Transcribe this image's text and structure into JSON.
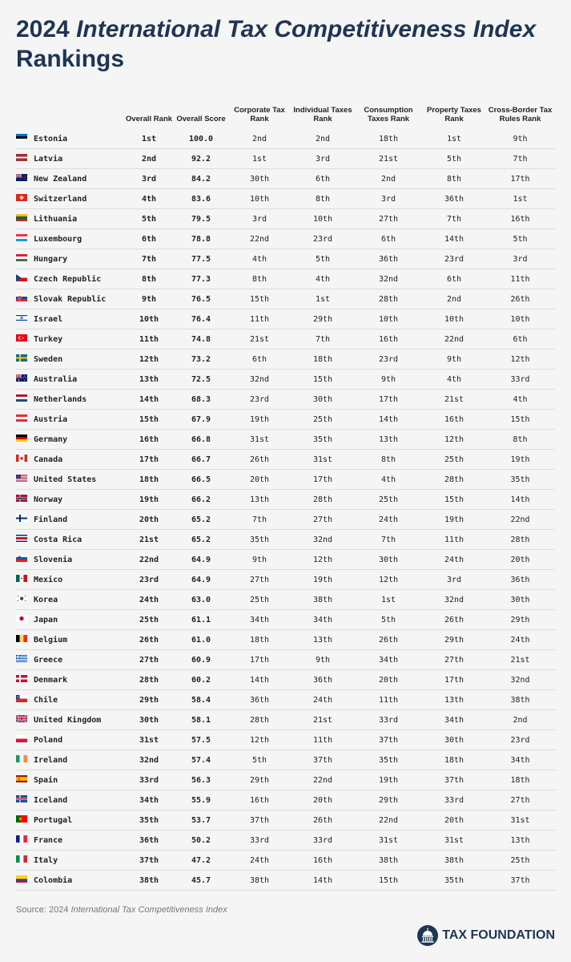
{
  "title": {
    "year": "2024",
    "name": "International Tax Competitiveness Index",
    "suffix": "Rankings"
  },
  "chart_data": {
    "type": "table",
    "columns": [
      "",
      "Overall Rank",
      "Overall Score",
      "Corporate Tax Rank",
      "Individual Taxes Rank",
      "Consumption Taxes Rank",
      "Property Taxes Rank",
      "Cross-Border Tax Rules Rank"
    ],
    "rows": [
      {
        "country": "Estonia",
        "flag": "estonia-flag",
        "values": [
          "1st",
          "100.0",
          "2nd",
          "2nd",
          "18th",
          "1st",
          "9th"
        ]
      },
      {
        "country": "Latvia",
        "flag": "latvia-flag",
        "values": [
          "2nd",
          "92.2",
          "1st",
          "3rd",
          "21st",
          "5th",
          "7th"
        ]
      },
      {
        "country": "New Zealand",
        "flag": "new-zealand-flag",
        "values": [
          "3rd",
          "84.2",
          "30th",
          "6th",
          "2nd",
          "8th",
          "17th"
        ]
      },
      {
        "country": "Switzerland",
        "flag": "switzerland-flag",
        "values": [
          "4th",
          "83.6",
          "10th",
          "8th",
          "3rd",
          "36th",
          "1st"
        ]
      },
      {
        "country": "Lithuania",
        "flag": "lithuania-flag",
        "values": [
          "5th",
          "79.5",
          "3rd",
          "10th",
          "27th",
          "7th",
          "16th"
        ]
      },
      {
        "country": "Luxembourg",
        "flag": "luxembourg-flag",
        "values": [
          "6th",
          "78.8",
          "22nd",
          "23rd",
          "6th",
          "14th",
          "5th"
        ]
      },
      {
        "country": "Hungary",
        "flag": "hungary-flag",
        "values": [
          "7th",
          "77.5",
          "4th",
          "5th",
          "36th",
          "23rd",
          "3rd"
        ]
      },
      {
        "country": "Czech Republic",
        "flag": "czech-republic-flag",
        "values": [
          "8th",
          "77.3",
          "8th",
          "4th",
          "32nd",
          "6th",
          "11th"
        ]
      },
      {
        "country": "Slovak Republic",
        "flag": "slovak-republic-flag",
        "values": [
          "9th",
          "76.5",
          "15th",
          "1st",
          "28th",
          "2nd",
          "26th"
        ]
      },
      {
        "country": "Israel",
        "flag": "israel-flag",
        "values": [
          "10th",
          "76.4",
          "11th",
          "29th",
          "10th",
          "10th",
          "10th"
        ]
      },
      {
        "country": "Turkey",
        "flag": "turkey-flag",
        "values": [
          "11th",
          "74.8",
          "21st",
          "7th",
          "16th",
          "22nd",
          "6th"
        ]
      },
      {
        "country": "Sweden",
        "flag": "sweden-flag",
        "values": [
          "12th",
          "73.2",
          "6th",
          "18th",
          "23rd",
          "9th",
          "12th"
        ]
      },
      {
        "country": "Australia",
        "flag": "australia-flag",
        "values": [
          "13th",
          "72.5",
          "32nd",
          "15th",
          "9th",
          "4th",
          "33rd"
        ]
      },
      {
        "country": "Netherlands",
        "flag": "netherlands-flag",
        "values": [
          "14th",
          "68.3",
          "23rd",
          "30th",
          "17th",
          "21st",
          "4th"
        ]
      },
      {
        "country": "Austria",
        "flag": "austria-flag",
        "values": [
          "15th",
          "67.9",
          "19th",
          "25th",
          "14th",
          "16th",
          "15th"
        ]
      },
      {
        "country": "Germany",
        "flag": "germany-flag",
        "values": [
          "16th",
          "66.8",
          "31st",
          "35th",
          "13th",
          "12th",
          "8th"
        ]
      },
      {
        "country": "Canada",
        "flag": "canada-flag",
        "values": [
          "17th",
          "66.7",
          "26th",
          "31st",
          "8th",
          "25th",
          "19th"
        ]
      },
      {
        "country": "United States",
        "flag": "united-states-flag",
        "values": [
          "18th",
          "66.5",
          "20th",
          "17th",
          "4th",
          "28th",
          "35th"
        ]
      },
      {
        "country": "Norway",
        "flag": "norway-flag",
        "values": [
          "19th",
          "66.2",
          "13th",
          "28th",
          "25th",
          "15th",
          "14th"
        ]
      },
      {
        "country": "Finland",
        "flag": "finland-flag",
        "values": [
          "20th",
          "65.2",
          "7th",
          "27th",
          "24th",
          "19th",
          "22nd"
        ]
      },
      {
        "country": "Costa Rica",
        "flag": "costa-rica-flag",
        "values": [
          "21st",
          "65.2",
          "35th",
          "32nd",
          "7th",
          "11th",
          "28th"
        ]
      },
      {
        "country": "Slovenia",
        "flag": "slovenia-flag",
        "values": [
          "22nd",
          "64.9",
          "9th",
          "12th",
          "30th",
          "24th",
          "20th"
        ]
      },
      {
        "country": "Mexico",
        "flag": "mexico-flag",
        "values": [
          "23rd",
          "64.9",
          "27th",
          "19th",
          "12th",
          "3rd",
          "36th"
        ]
      },
      {
        "country": "Korea",
        "flag": "korea-flag",
        "values": [
          "24th",
          "63.0",
          "25th",
          "38th",
          "1st",
          "32nd",
          "30th"
        ]
      },
      {
        "country": "Japan",
        "flag": "japan-flag",
        "values": [
          "25th",
          "61.1",
          "34th",
          "34th",
          "5th",
          "26th",
          "29th"
        ]
      },
      {
        "country": "Belgium",
        "flag": "belgium-flag",
        "values": [
          "26th",
          "61.0",
          "18th",
          "13th",
          "26th",
          "29th",
          "24th"
        ]
      },
      {
        "country": "Greece",
        "flag": "greece-flag",
        "values": [
          "27th",
          "60.9",
          "17th",
          "9th",
          "34th",
          "27th",
          "21st"
        ]
      },
      {
        "country": "Denmark",
        "flag": "denmark-flag",
        "values": [
          "28th",
          "60.2",
          "14th",
          "36th",
          "20th",
          "17th",
          "32nd"
        ]
      },
      {
        "country": "Chile",
        "flag": "chile-flag",
        "values": [
          "29th",
          "58.4",
          "36th",
          "24th",
          "11th",
          "13th",
          "38th"
        ]
      },
      {
        "country": "United Kingdom",
        "flag": "united-kingdom-flag",
        "values": [
          "30th",
          "58.1",
          "28th",
          "21st",
          "33rd",
          "34th",
          "2nd"
        ]
      },
      {
        "country": "Poland",
        "flag": "poland-flag",
        "values": [
          "31st",
          "57.5",
          "12th",
          "11th",
          "37th",
          "30th",
          "23rd"
        ]
      },
      {
        "country": "Ireland",
        "flag": "ireland-flag",
        "values": [
          "32nd",
          "57.4",
          "5th",
          "37th",
          "35th",
          "18th",
          "34th"
        ]
      },
      {
        "country": "Spain",
        "flag": "spain-flag",
        "values": [
          "33rd",
          "56.3",
          "29th",
          "22nd",
          "19th",
          "37th",
          "18th"
        ]
      },
      {
        "country": "Iceland",
        "flag": "iceland-flag",
        "values": [
          "34th",
          "55.9",
          "16th",
          "20th",
          "29th",
          "33rd",
          "27th"
        ]
      },
      {
        "country": "Portugal",
        "flag": "portugal-flag",
        "values": [
          "35th",
          "53.7",
          "37th",
          "26th",
          "22nd",
          "20th",
          "31st"
        ]
      },
      {
        "country": "France",
        "flag": "france-flag",
        "values": [
          "36th",
          "50.2",
          "33rd",
          "33rd",
          "31st",
          "31st",
          "13th"
        ]
      },
      {
        "country": "Italy",
        "flag": "italy-flag",
        "values": [
          "37th",
          "47.2",
          "24th",
          "16th",
          "38th",
          "38th",
          "25th"
        ]
      },
      {
        "country": "Colombia",
        "flag": "colombia-flag",
        "values": [
          "38th",
          "45.7",
          "38th",
          "14th",
          "15th",
          "35th",
          "37th"
        ]
      }
    ]
  },
  "source": {
    "prefix": "Source: 2024",
    "name": "International Tax Competitiveness Index"
  },
  "logo": {
    "text": "TAX FOUNDATION",
    "icon": "capitol-dome-icon"
  },
  "colors": {
    "title": "#1f3652",
    "background": "#f5f5f5",
    "row_divider": "#dcdcdc"
  }
}
